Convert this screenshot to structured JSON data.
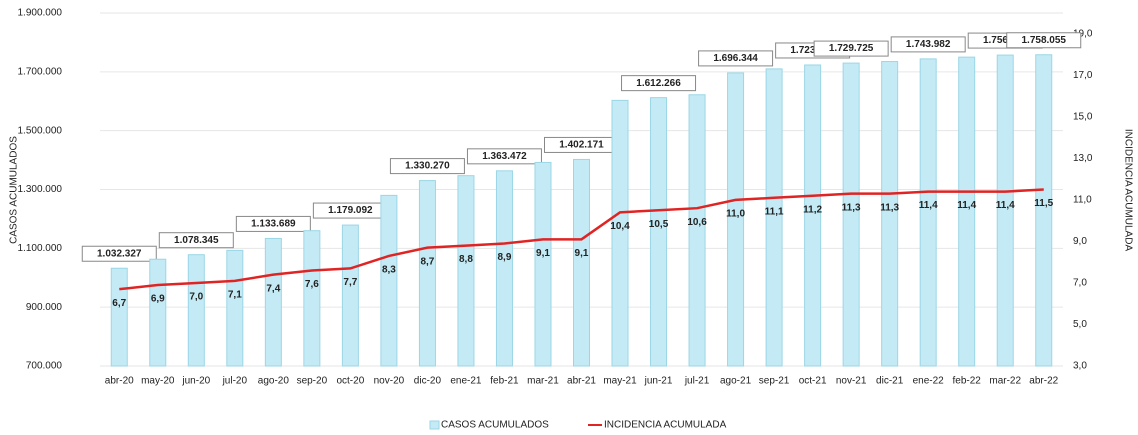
{
  "chart_data": {
    "type": "bar",
    "ylabel": "CASOS ACUMULADOS",
    "y2label": "INCIDENCIA ACUMULADA",
    "categories": [
      "abr-20",
      "may-20",
      "jun-20",
      "jul-20",
      "ago-20",
      "sep-20",
      "oct-20",
      "nov-20",
      "dic-20",
      "ene-21",
      "feb-21",
      "mar-21",
      "abr-21",
      "may-21",
      "jun-21",
      "jul-21",
      "ago-21",
      "sep-21",
      "oct-21",
      "nov-21",
      "dic-21",
      "ene-22",
      "feb-22",
      "mar-22",
      "abr-22"
    ],
    "series": [
      {
        "name": "CASOS ACUMULADOS",
        "type": "bar",
        "color": "#c4ebf5",
        "values": [
          1032327,
          1063000,
          1078345,
          1093000,
          1133689,
          1160000,
          1179092,
          1280000,
          1330270,
          1347000,
          1363472,
          1392000,
          1402171,
          1603000,
          1612266,
          1622000,
          1696344,
          1710000,
          1723312,
          1729725,
          1735000,
          1743982,
          1750000,
          1756944,
          1758055
        ],
        "value_labels": [
          "1.032.327",
          null,
          "1.078.345",
          null,
          "1.133.689",
          null,
          "1.179.092",
          null,
          "1.330.270",
          null,
          "1.363.472",
          null,
          "1.402.171",
          null,
          "1.612.266",
          null,
          "1.696.344",
          null,
          "1.723.312",
          "1.729.725",
          null,
          "1.743.982",
          null,
          "1.756.944",
          "1.758.055"
        ]
      },
      {
        "name": "INCIDENCIA ACUMULADA",
        "type": "line",
        "axis": "y2",
        "color": "#e02424",
        "values": [
          6.7,
          6.9,
          7.0,
          7.1,
          7.4,
          7.6,
          7.7,
          8.3,
          8.7,
          8.8,
          8.9,
          9.1,
          9.1,
          10.4,
          10.5,
          10.6,
          11.0,
          11.1,
          11.2,
          11.3,
          11.3,
          11.4,
          11.4,
          11.4,
          11.5
        ],
        "value_labels": [
          "6,7",
          "6,9",
          "7,0",
          "7,1",
          "7,4",
          "7,6",
          "7,7",
          "8,3",
          "8,7",
          "8,8",
          "8,9",
          "9,1",
          "9,1",
          "10,4",
          "10,5",
          "10,6",
          "11,0",
          "11,1",
          "11,2",
          "11,3",
          "11,3",
          "11,4",
          "11,4",
          "11,4",
          "11,5"
        ]
      }
    ],
    "ylim": [
      700000,
      1900000
    ],
    "yticks": [
      {
        "value": 700000,
        "label": "700.000"
      },
      {
        "value": 900000,
        "label": "900.000"
      },
      {
        "value": 1100000,
        "label": "1.100.000"
      },
      {
        "value": 1300000,
        "label": "1.300.000"
      },
      {
        "value": 1500000,
        "label": "1.500.000"
      },
      {
        "value": 1700000,
        "label": "1.700.000"
      },
      {
        "value": 1900000,
        "label": "1.900.000"
      }
    ],
    "y2lim": [
      3,
      20
    ],
    "y2ticks": [
      {
        "value": 3,
        "label": "3,0"
      },
      {
        "value": 5,
        "label": "5,0"
      },
      {
        "value": 7,
        "label": "7,0"
      },
      {
        "value": 9,
        "label": "9,0"
      },
      {
        "value": 11,
        "label": "11,0"
      },
      {
        "value": 13,
        "label": "13,0"
      },
      {
        "value": 15,
        "label": "15,0"
      },
      {
        "value": 17,
        "label": "17,0"
      },
      {
        "value": 19,
        "label": "19,0"
      }
    ],
    "grid": true,
    "legend": "bottom"
  }
}
